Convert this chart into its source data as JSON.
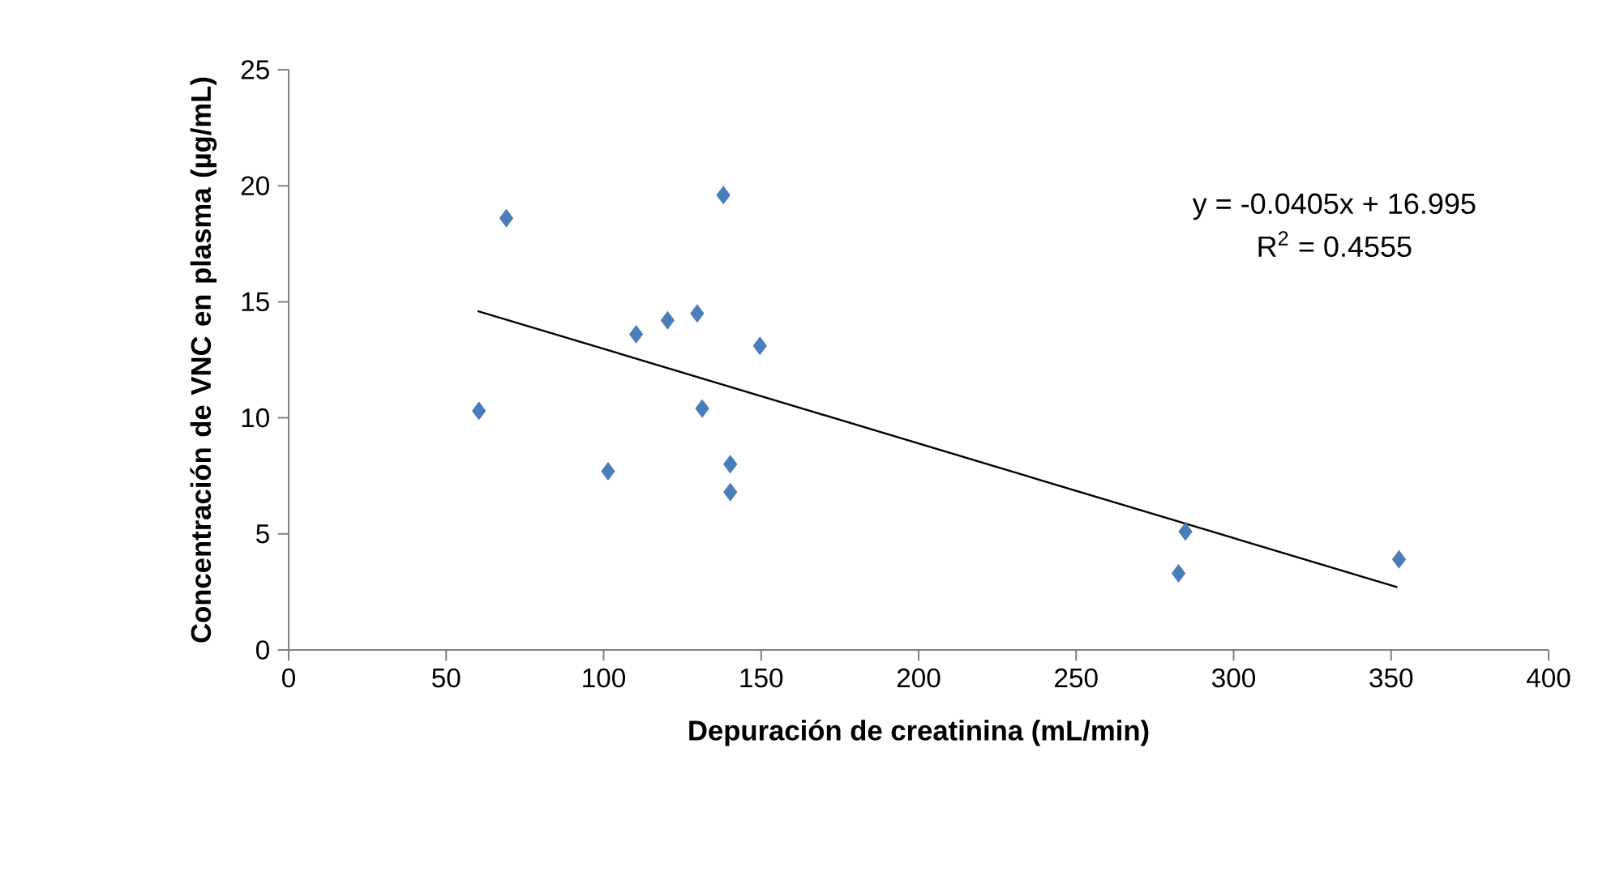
{
  "chart_data": {
    "type": "scatter",
    "xlabel": "Depuración de creatinina (mL/min)",
    "ylabel": "Concentración de VNC en plasma (µg/mL)",
    "xlim": [
      0,
      400
    ],
    "ylim": [
      0,
      25
    ],
    "xticks": [
      0,
      50,
      100,
      150,
      200,
      250,
      300,
      350,
      400
    ],
    "yticks": [
      0,
      5,
      10,
      15,
      20,
      25
    ],
    "series": [
      {
        "marker": "diamond",
        "color": "#4a7ebb",
        "x": [
          60.4,
          69.1,
          101.4,
          110.3,
          120.3,
          129.7,
          131.3,
          138,
          140.2,
          140.2,
          149.6,
          284.7,
          282.5,
          352.5
        ],
        "values": [
          10.3,
          18.6,
          7.7,
          13.6,
          14.2,
          14.5,
          10.4,
          19.6,
          8.0,
          6.8,
          13.1,
          5.1,
          3.3,
          3.9
        ]
      },
      {
        "type": "line",
        "marker": "none",
        "color": "#000000",
        "x": [
          60,
          352
        ],
        "values": [
          14.6,
          2.7
        ]
      }
    ],
    "annotations": [
      "y = -0.0405x + 16.995",
      "R$^{2}$ = 0.4555"
    ]
  }
}
